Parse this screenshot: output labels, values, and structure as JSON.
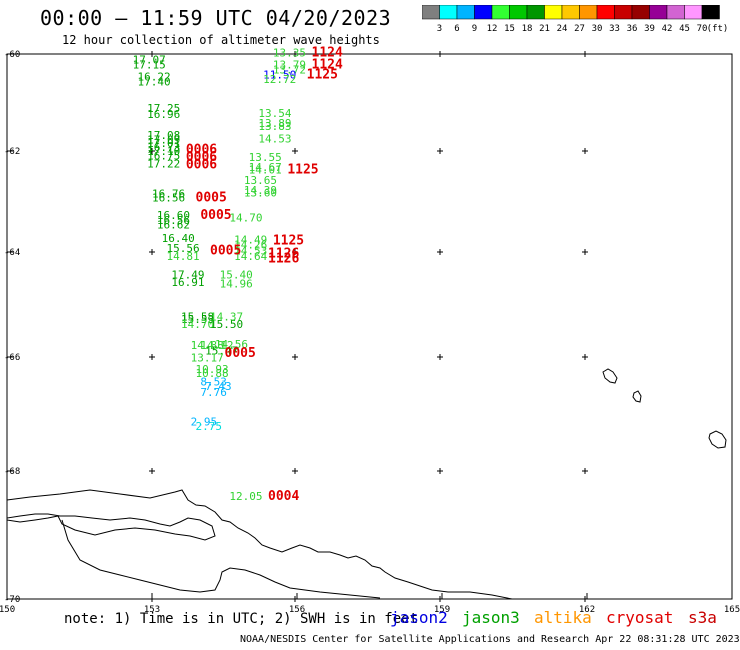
{
  "header": {
    "title": "00:00 – 11:59 UTC 04/20/2023",
    "subtitle": "12 hour collection of altimeter wave heights"
  },
  "colorbar": {
    "unit": "(ft)",
    "colors": [
      "#7f7f7f",
      "#00ffff",
      "#00b4ff",
      "#0000ff",
      "#32ff32",
      "#00c800",
      "#009600",
      "#ffff00",
      "#ffc800",
      "#ff9600",
      "#ff0000",
      "#c80000",
      "#960000",
      "#960096",
      "#d264d2",
      "#ff96ff",
      "#000000"
    ],
    "labels": [
      "3",
      "6",
      "9",
      "12",
      "15",
      "18",
      "21",
      "24",
      "27",
      "30",
      "33",
      "36",
      "39",
      "42",
      "45",
      "70"
    ]
  },
  "axes": {
    "y_ticks": [
      "-60",
      "-62",
      "-64",
      "-66",
      "-68",
      "-70"
    ],
    "x_ticks": [
      "150",
      "153",
      "156",
      "159",
      "162",
      "165"
    ]
  },
  "observations": [
    {
      "text": "17.07",
      "lon": 152.6,
      "lat": -60.2,
      "color": "#00a000"
    },
    {
      "text": "17.15",
      "lon": 152.6,
      "lat": -60.3,
      "color": "#00a000"
    },
    {
      "text": "16.22",
      "lon": 152.7,
      "lat": -60.55,
      "color": "#00a000"
    },
    {
      "text": "17.40",
      "lon": 152.7,
      "lat": -60.65,
      "color": "#00a000"
    },
    {
      "text": "17.25",
      "lon": 152.9,
      "lat": -61.2,
      "color": "#00a000"
    },
    {
      "text": "16.96",
      "lon": 152.9,
      "lat": -61.32,
      "color": "#00a000"
    },
    {
      "text": "17.08",
      "lon": 152.9,
      "lat": -61.75,
      "color": "#00a000"
    },
    {
      "text": "17.09",
      "lon": 152.9,
      "lat": -61.85,
      "color": "#00a000"
    },
    {
      "text": "17.01",
      "lon": 152.9,
      "lat": -61.92,
      "color": "#00a000"
    },
    {
      "text": "16.73",
      "lon": 152.9,
      "lat": -62.0,
      "color": "#00a000"
    },
    {
      "text": "17.10",
      "lon": 152.9,
      "lat": -62.08,
      "color": "#00a000"
    },
    {
      "text": "16.75",
      "lon": 152.9,
      "lat": -62.17,
      "color": "#00a000"
    },
    {
      "text": "17.22",
      "lon": 152.9,
      "lat": -62.33,
      "color": "#00a000"
    },
    {
      "text": "16.76",
      "lon": 153.0,
      "lat": -62.92,
      "color": "#00a000"
    },
    {
      "text": "16.56",
      "lon": 153.0,
      "lat": -63.0,
      "color": "#00a000"
    },
    {
      "text": "16.60",
      "lon": 153.1,
      "lat": -63.35,
      "color": "#00a000"
    },
    {
      "text": "16.56",
      "lon": 153.1,
      "lat": -63.45,
      "color": "#00a000"
    },
    {
      "text": "16.62",
      "lon": 153.1,
      "lat": -63.53,
      "color": "#00a000"
    },
    {
      "text": "16.40",
      "lon": 153.2,
      "lat": -63.8,
      "color": "#00a000"
    },
    {
      "text": "15.56",
      "lon": 153.3,
      "lat": -64.0,
      "color": "#00a000"
    },
    {
      "text": "14.81",
      "lon": 153.3,
      "lat": -64.15,
      "color": "#32d232"
    },
    {
      "text": "17.49",
      "lon": 153.4,
      "lat": -64.5,
      "color": "#00a000"
    },
    {
      "text": "16.91",
      "lon": 153.4,
      "lat": -64.65,
      "color": "#00a000"
    },
    {
      "text": "15.58",
      "lon": 153.6,
      "lat": -65.3,
      "color": "#00a000"
    },
    {
      "text": "15.53",
      "lon": 153.6,
      "lat": -65.35,
      "color": "#00a000"
    },
    {
      "text": "14.70",
      "lon": 153.6,
      "lat": -65.45,
      "color": "#32d232"
    },
    {
      "text": "15.50",
      "lon": 154.2,
      "lat": -65.45,
      "color": "#00a000"
    },
    {
      "text": "14.37",
      "lon": 154.2,
      "lat": -65.3,
      "color": "#32d232"
    },
    {
      "text": "14.88",
      "lon": 153.8,
      "lat": -65.85,
      "color": "#32d232"
    },
    {
      "text": "14.12",
      "lon": 154.0,
      "lat": -65.85,
      "color": "#32d232"
    },
    {
      "text": "14.56",
      "lon": 154.3,
      "lat": -65.83,
      "color": "#32d232"
    },
    {
      "text": "15.47",
      "lon": 154.1,
      "lat": -65.95,
      "color": "#00a000"
    },
    {
      "text": "13.17",
      "lon": 153.8,
      "lat": -66.08,
      "color": "#32d232"
    },
    {
      "text": "10.93",
      "lon": 153.9,
      "lat": -66.28,
      "color": "#32d232"
    },
    {
      "text": "10.88",
      "lon": 153.9,
      "lat": -66.35,
      "color": "#32d232"
    },
    {
      "text": "8.53",
      "lon": 154.0,
      "lat": -66.5,
      "color": "#00b4ff"
    },
    {
      "text": "7.43",
      "lon": 154.1,
      "lat": -66.58,
      "color": "#00b4ff"
    },
    {
      "text": "7.76",
      "lon": 154.0,
      "lat": -66.68,
      "color": "#00b4ff"
    },
    {
      "text": "2.95",
      "lon": 153.8,
      "lat": -67.2,
      "color": "#00b4ff"
    },
    {
      "text": "2.75",
      "lon": 153.9,
      "lat": -67.28,
      "color": "#00dcdc"
    },
    {
      "text": "13.35",
      "lon": 155.5,
      "lat": -60.05,
      "color": "#32d232"
    },
    {
      "text": "13.79",
      "lon": 155.5,
      "lat": -60.3,
      "color": "#32d232"
    },
    {
      "text": "13.72",
      "lon": 155.5,
      "lat": -60.4,
      "color": "#32d232"
    },
    {
      "text": "11.50",
      "lon": 155.3,
      "lat": -60.5,
      "color": "#0000ff"
    },
    {
      "text": "12.72",
      "lon": 155.3,
      "lat": -60.6,
      "color": "#32d232"
    },
    {
      "text": "13.54",
      "lon": 155.2,
      "lat": -61.3,
      "color": "#32d232"
    },
    {
      "text": "13.89",
      "lon": 155.2,
      "lat": -61.5,
      "color": "#32d232"
    },
    {
      "text": "13.83",
      "lon": 155.2,
      "lat": -61.57,
      "color": "#32d232"
    },
    {
      "text": "14.53",
      "lon": 155.2,
      "lat": -61.82,
      "color": "#32d232"
    },
    {
      "text": "13.55",
      "lon": 155.0,
      "lat": -62.2,
      "color": "#32d232"
    },
    {
      "text": "14.67",
      "lon": 155.0,
      "lat": -62.4,
      "color": "#32d232"
    },
    {
      "text": "14.01",
      "lon": 155.0,
      "lat": -62.45,
      "color": "#32d232"
    },
    {
      "text": "13.65",
      "lon": 154.9,
      "lat": -62.65,
      "color": "#32d232"
    },
    {
      "text": "14.39",
      "lon": 154.9,
      "lat": -62.85,
      "color": "#32d232"
    },
    {
      "text": "13.60",
      "lon": 154.9,
      "lat": -62.9,
      "color": "#32d232"
    },
    {
      "text": "14.70",
      "lon": 154.6,
      "lat": -63.4,
      "color": "#32d232"
    },
    {
      "text": "14.49",
      "lon": 154.7,
      "lat": -63.83,
      "color": "#32d232"
    },
    {
      "text": "14.26",
      "lon": 154.7,
      "lat": -63.93,
      "color": "#32d232"
    },
    {
      "text": "14.53",
      "lon": 154.7,
      "lat": -64.05,
      "color": "#32d232"
    },
    {
      "text": "14.64",
      "lon": 154.7,
      "lat": -64.15,
      "color": "#32d232"
    },
    {
      "text": "15.40",
      "lon": 154.4,
      "lat": -64.5,
      "color": "#32d232"
    },
    {
      "text": "14.96",
      "lon": 154.4,
      "lat": -64.68,
      "color": "#32d232"
    },
    {
      "text": "12.05",
      "lon": 154.6,
      "lat": -68.45,
      "color": "#32d232"
    },
    {
      "text": "1124",
      "lon": 156.3,
      "lat": -60.05,
      "color": "#e00000",
      "big": true
    },
    {
      "text": "1124",
      "lon": 156.3,
      "lat": -60.3,
      "color": "#e00000",
      "big": true
    },
    {
      "text": "1125",
      "lon": 156.2,
      "lat": -60.5,
      "color": "#e00000",
      "big": true
    },
    {
      "text": "0006",
      "lon": 153.7,
      "lat": -62.05,
      "color": "#e00000",
      "big": true
    },
    {
      "text": "0006",
      "lon": 153.7,
      "lat": -62.2,
      "color": "#e00000",
      "big": true
    },
    {
      "text": "0006",
      "lon": 153.7,
      "lat": -62.35,
      "color": "#e00000",
      "big": true
    },
    {
      "text": "1125",
      "lon": 155.8,
      "lat": -62.45,
      "color": "#e00000",
      "big": true
    },
    {
      "text": "0005",
      "lon": 153.9,
      "lat": -63.0,
      "color": "#e00000",
      "big": true
    },
    {
      "text": "0005",
      "lon": 154.0,
      "lat": -63.35,
      "color": "#e00000",
      "big": true
    },
    {
      "text": "1125",
      "lon": 155.5,
      "lat": -63.85,
      "color": "#e00000",
      "big": true
    },
    {
      "text": "0005",
      "lon": 154.2,
      "lat": -64.05,
      "color": "#e00000",
      "big": true
    },
    {
      "text": "1126",
      "lon": 155.4,
      "lat": -64.1,
      "color": "#e00000",
      "big": true
    },
    {
      "text": "1126",
      "lon": 155.4,
      "lat": -64.2,
      "color": "#e00000",
      "big": true
    },
    {
      "text": "0005",
      "lon": 154.5,
      "lat": -66.0,
      "color": "#e00000",
      "big": true
    },
    {
      "text": "0004",
      "lon": 155.4,
      "lat": -68.45,
      "color": "#e00000",
      "big": true
    }
  ],
  "footer": {
    "note": "note: 1) Time is in UTC; 2) SWH is in feet",
    "satellites": [
      {
        "label": "jason2",
        "color": "#0000e0"
      },
      {
        "label": "jason3",
        "color": "#00a000"
      },
      {
        "label": "altika",
        "color": "#ff9600"
      },
      {
        "label": "cryosat",
        "color": "#e00000"
      },
      {
        "label": "s3a",
        "color": "#c80000"
      }
    ],
    "credit": "NOAA/NESDIS Center for Satellite Applications and Research   Apr 22 08:31:28 UTC 2023"
  }
}
